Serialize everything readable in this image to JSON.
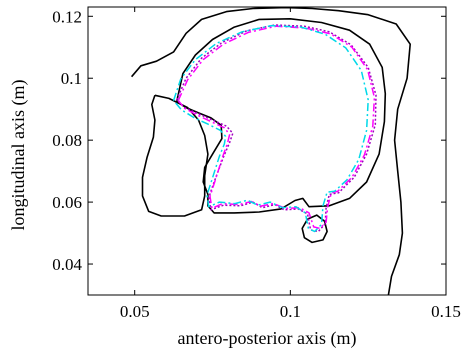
{
  "chart_data": {
    "type": "line",
    "xlabel": "antero-posterior axis (m)",
    "ylabel": "longitudinal axis (m)",
    "xlim": [
      0.035,
      0.15
    ],
    "ylim": [
      0.03,
      0.123
    ],
    "x_ticks": [
      0.05,
      0.1,
      0.15
    ],
    "x_tick_labels": [
      "0.05",
      "0.1",
      "0.15"
    ],
    "y_ticks": [
      0.04,
      0.06,
      0.08,
      0.1,
      0.12
    ],
    "y_tick_labels": [
      "0.04",
      "0.06",
      "0.08",
      "0.1",
      "0.12"
    ],
    "grid": false,
    "series": [
      {
        "color": "#000000",
        "dash": "",
        "points": [
          [
            0.049,
            0.1005
          ],
          [
            0.052,
            0.104
          ],
          [
            0.057,
            0.1055
          ],
          [
            0.0625,
            0.1085
          ],
          [
            0.0665,
            0.1145
          ],
          [
            0.0715,
            0.119
          ],
          [
            0.0795,
            0.1215
          ],
          [
            0.088,
            0.1225
          ],
          [
            0.0985,
            0.1228
          ],
          [
            0.107,
            0.1225
          ],
          [
            0.1155,
            0.1218
          ],
          [
            0.125,
            0.1205
          ],
          [
            0.134,
            0.1175
          ],
          [
            0.1385,
            0.111
          ],
          [
            0.1375,
            0.1
          ],
          [
            0.1345,
            0.09
          ],
          [
            0.1335,
            0.08
          ],
          [
            0.1345,
            0.07
          ],
          [
            0.1355,
            0.06
          ],
          [
            0.136,
            0.05
          ],
          [
            0.135,
            0.043
          ],
          [
            0.1325,
            0.036
          ],
          [
            0.1315,
            0.03
          ]
        ]
      },
      {
        "color": "#000000",
        "dash": "",
        "points": [
          [
            0.0635,
            0.0925
          ],
          [
            0.0655,
            0.1015
          ],
          [
            0.0695,
            0.1075
          ],
          [
            0.075,
            0.1125
          ],
          [
            0.082,
            0.1165
          ],
          [
            0.09,
            0.119
          ],
          [
            0.1,
            0.1192
          ],
          [
            0.11,
            0.118
          ],
          [
            0.119,
            0.1155
          ],
          [
            0.1255,
            0.111
          ],
          [
            0.1295,
            0.1035
          ],
          [
            0.1305,
            0.095
          ],
          [
            0.1302,
            0.086
          ],
          [
            0.1285,
            0.0755
          ],
          [
            0.1245,
            0.0665
          ],
          [
            0.119,
            0.0612
          ],
          [
            0.1125,
            0.0588
          ],
          [
            0.106,
            0.0585
          ],
          [
            0.104,
            0.0612
          ],
          [
            0.1015,
            0.0605
          ],
          [
            0.097,
            0.0578
          ],
          [
            0.09,
            0.0568
          ],
          [
            0.082,
            0.0565
          ],
          [
            0.0755,
            0.0565
          ],
          [
            0.0735,
            0.0588
          ],
          [
            0.0735,
            0.0625
          ],
          [
            0.072,
            0.0665
          ],
          [
            0.0725,
            0.0712
          ],
          [
            0.0752,
            0.0758
          ],
          [
            0.078,
            0.0805
          ],
          [
            0.0778,
            0.0848
          ],
          [
            0.0745,
            0.0872
          ],
          [
            0.0705,
            0.0888
          ],
          [
            0.0665,
            0.0905
          ],
          [
            0.0635,
            0.0925
          ]
        ]
      },
      {
        "color": "#000000",
        "dash": "",
        "points": [
          [
            0.0565,
            0.0945
          ],
          [
            0.061,
            0.0935
          ],
          [
            0.067,
            0.0905
          ],
          [
            0.0705,
            0.0865
          ],
          [
            0.0725,
            0.0815
          ],
          [
            0.0735,
            0.0755
          ],
          [
            0.0725,
            0.0685
          ],
          [
            0.0725,
            0.062
          ],
          [
            0.0715,
            0.0575
          ],
          [
            0.066,
            0.0555
          ],
          [
            0.0585,
            0.0555
          ],
          [
            0.0545,
            0.057
          ],
          [
            0.0525,
            0.062
          ],
          [
            0.0525,
            0.068
          ],
          [
            0.054,
            0.0745
          ],
          [
            0.056,
            0.081
          ],
          [
            0.0565,
            0.0865
          ],
          [
            0.0555,
            0.0915
          ],
          [
            0.0565,
            0.0945
          ]
        ]
      },
      {
        "color": "#000000",
        "dash": "",
        "points": [
          [
            0.1055,
            0.0545
          ],
          [
            0.1085,
            0.0558
          ],
          [
            0.111,
            0.0538
          ],
          [
            0.1118,
            0.0505
          ],
          [
            0.1105,
            0.0478
          ],
          [
            0.107,
            0.047
          ],
          [
            0.1045,
            0.0485
          ],
          [
            0.1038,
            0.0515
          ],
          [
            0.1055,
            0.0545
          ]
        ]
      },
      {
        "color": "#a000c0",
        "dash": "2,2",
        "points": [
          [
            0.0635,
            0.093
          ],
          [
            0.0665,
            0.1
          ],
          [
            0.0715,
            0.1065
          ],
          [
            0.078,
            0.1115
          ],
          [
            0.086,
            0.1153
          ],
          [
            0.095,
            0.1172
          ],
          [
            0.1045,
            0.1168
          ],
          [
            0.1125,
            0.115
          ],
          [
            0.1195,
            0.1108
          ],
          [
            0.125,
            0.1035
          ],
          [
            0.1275,
            0.0945
          ],
          [
            0.1273,
            0.085
          ],
          [
            0.1245,
            0.0755
          ],
          [
            0.1205,
            0.068
          ],
          [
            0.1155,
            0.063
          ],
          [
            0.1125,
            0.0625
          ],
          [
            0.1115,
            0.0582
          ],
          [
            0.1112,
            0.053
          ],
          [
            0.109,
            0.0505
          ],
          [
            0.1065,
            0.051
          ],
          [
            0.1055,
            0.0562
          ],
          [
            0.1025,
            0.0578
          ],
          [
            0.098,
            0.0575
          ],
          [
            0.095,
            0.0592
          ],
          [
            0.091,
            0.0582
          ],
          [
            0.088,
            0.06
          ],
          [
            0.084,
            0.0588
          ],
          [
            0.0785,
            0.059
          ],
          [
            0.0745,
            0.0575
          ],
          [
            0.0738,
            0.0615
          ],
          [
            0.0755,
            0.0665
          ],
          [
            0.0785,
            0.0745
          ],
          [
            0.0805,
            0.0792
          ],
          [
            0.0815,
            0.0822
          ],
          [
            0.0795,
            0.0845
          ],
          [
            0.075,
            0.0865
          ],
          [
            0.0705,
            0.0885
          ],
          [
            0.066,
            0.0905
          ],
          [
            0.0635,
            0.093
          ]
        ]
      },
      {
        "color": "#ff00ff",
        "dash": "8,3,2,3",
        "points": [
          [
            0.064,
            0.0928
          ],
          [
            0.067,
            0.0995
          ],
          [
            0.072,
            0.106
          ],
          [
            0.0785,
            0.111
          ],
          [
            0.0865,
            0.1148
          ],
          [
            0.0955,
            0.1168
          ],
          [
            0.105,
            0.1162
          ],
          [
            0.113,
            0.1143
          ],
          [
            0.1198,
            0.11
          ],
          [
            0.1248,
            0.1028
          ],
          [
            0.127,
            0.0938
          ],
          [
            0.1265,
            0.0845
          ],
          [
            0.1238,
            0.0752
          ],
          [
            0.1198,
            0.068
          ],
          [
            0.1152,
            0.0635
          ],
          [
            0.1132,
            0.063
          ],
          [
            0.112,
            0.0585
          ],
          [
            0.1115,
            0.0535
          ],
          [
            0.1095,
            0.0515
          ],
          [
            0.1075,
            0.052
          ],
          [
            0.106,
            0.0565
          ],
          [
            0.103,
            0.0582
          ],
          [
            0.0985,
            0.058
          ],
          [
            0.0945,
            0.0595
          ],
          [
            0.0905,
            0.0587
          ],
          [
            0.0875,
            0.0602
          ],
          [
            0.0835,
            0.0592
          ],
          [
            0.0782,
            0.0595
          ],
          [
            0.0748,
            0.058
          ],
          [
            0.0742,
            0.0618
          ],
          [
            0.0758,
            0.0668
          ],
          [
            0.0782,
            0.0745
          ],
          [
            0.0798,
            0.079
          ],
          [
            0.0805,
            0.0818
          ],
          [
            0.0788,
            0.084
          ],
          [
            0.0745,
            0.086
          ],
          [
            0.0703,
            0.088
          ],
          [
            0.066,
            0.0903
          ],
          [
            0.064,
            0.0928
          ]
        ]
      },
      {
        "color": "#00d8e8",
        "dash": "8,3,2,3",
        "points": [
          [
            0.0625,
            0.0928
          ],
          [
            0.0648,
            0.0998
          ],
          [
            0.0695,
            0.106
          ],
          [
            0.0762,
            0.1112
          ],
          [
            0.0845,
            0.115
          ],
          [
            0.094,
            0.117
          ],
          [
            0.1035,
            0.1165
          ],
          [
            0.1112,
            0.1142
          ],
          [
            0.1178,
            0.1098
          ],
          [
            0.1228,
            0.1025
          ],
          [
            0.125,
            0.093
          ],
          [
            0.1245,
            0.0832
          ],
          [
            0.122,
            0.0738
          ],
          [
            0.1182,
            0.0672
          ],
          [
            0.1142,
            0.0635
          ],
          [
            0.1118,
            0.0632
          ],
          [
            0.1105,
            0.0588
          ],
          [
            0.11,
            0.0528
          ],
          [
            0.1078,
            0.0505
          ],
          [
            0.1058,
            0.0515
          ],
          [
            0.1048,
            0.0565
          ],
          [
            0.1018,
            0.0585
          ],
          [
            0.0975,
            0.0582
          ],
          [
            0.0935,
            0.06
          ],
          [
            0.0895,
            0.059
          ],
          [
            0.0862,
            0.0606
          ],
          [
            0.0822,
            0.0595
          ],
          [
            0.0772,
            0.06
          ],
          [
            0.0738,
            0.0585
          ],
          [
            0.0732,
            0.0622
          ],
          [
            0.0748,
            0.0672
          ],
          [
            0.0772,
            0.0748
          ],
          [
            0.0788,
            0.0788
          ],
          [
            0.0792,
            0.0812
          ],
          [
            0.0775,
            0.0832
          ],
          [
            0.0735,
            0.0852
          ],
          [
            0.0692,
            0.0872
          ],
          [
            0.065,
            0.0898
          ],
          [
            0.0625,
            0.0928
          ]
        ]
      }
    ]
  }
}
